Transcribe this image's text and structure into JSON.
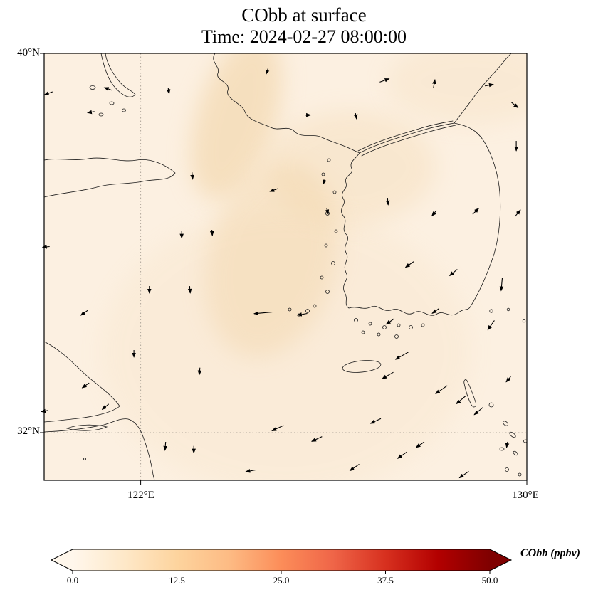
{
  "chart_data": {
    "type": "heatmap",
    "subtype": "geographic concentration field with quiver wind vectors over the Yellow Sea / Korean peninsula region",
    "title": "CObb at surface",
    "subtitle": "Time: 2024-02-27 08:00:00",
    "variable": "CObb",
    "level": "surface",
    "time": "2024-02-27 08:00:00",
    "extent": {
      "lon_min": 120,
      "lon_max": 130,
      "lat_min": 31,
      "lat_max": 40
    },
    "xticks": [
      {
        "value": 122,
        "label": "122°E"
      },
      {
        "value": 130,
        "label": "130°E"
      }
    ],
    "yticks": [
      {
        "value": 40,
        "label": "40°N"
      },
      {
        "value": 32,
        "label": "32°N"
      }
    ],
    "gridlines": {
      "lon": [
        122
      ],
      "lat": [
        32
      ],
      "style": "dotted"
    },
    "field": {
      "units": "ppbv",
      "range": [
        0,
        50
      ],
      "background_value_ppbv": 3,
      "plume_value_ppbv": 10,
      "description": "Pale cream background of roughly 2-5 ppbv everywhere; a faint light-orange plume of roughly 7-12 ppbv extends from near 124°E/40°N southward over the Yellow Sea toward 124-125°E/34-37°N."
    },
    "colorbar": {
      "label": "CObb (ppbv)",
      "tick_values": [
        0,
        12.5,
        25,
        37.5,
        50
      ],
      "tick_labels": [
        "0.0",
        "12.5",
        "25.0",
        "37.5",
        "50.0"
      ],
      "cmap": "OrRd",
      "extend": "both",
      "stops": [
        {
          "pos": 0,
          "color": "#fff7ec"
        },
        {
          "pos": 0.125,
          "color": "#fee8c8"
        },
        {
          "pos": 0.25,
          "color": "#fdd49e"
        },
        {
          "pos": 0.375,
          "color": "#fdbb84"
        },
        {
          "pos": 0.5,
          "color": "#fc8d59"
        },
        {
          "pos": 0.625,
          "color": "#ef6548"
        },
        {
          "pos": 0.75,
          "color": "#d7301f"
        },
        {
          "pos": 0.875,
          "color": "#b30000"
        },
        {
          "pos": 1,
          "color": "#7f0000"
        }
      ]
    },
    "quiver": {
      "units": "[lon_deg, lat_deg, u_px_east, v_px_north] - arrow screen displacement, length proportional to wind speed",
      "arrows": [
        [
          120.09,
          39.16,
          -11.3,
          -4.1
        ],
        [
          120.97,
          38.76,
          -9.8,
          -1.7
        ],
        [
          121.33,
          39.25,
          -11.3,
          4.1
        ],
        [
          122.58,
          39.21,
          1.4,
          -7.9
        ],
        [
          124.62,
          39.63,
          -3.4,
          -9.4
        ],
        [
          127.05,
          39.43,
          13.2,
          4.8
        ],
        [
          128.08,
          39.36,
          2.1,
          11.8
        ],
        [
          129.22,
          39.33,
          11.8,
          2.1
        ],
        [
          129.75,
          38.91,
          9.2,
          -7.7
        ],
        [
          125.46,
          38.7,
          8.0,
          0
        ],
        [
          126.46,
          38.68,
          1.4,
          -7.9
        ],
        [
          129.78,
          38.05,
          0,
          -14
        ],
        [
          123.07,
          37.42,
          0.9,
          -10
        ],
        [
          124.76,
          37.12,
          -11.3,
          -4.1
        ],
        [
          125.8,
          37.3,
          -2.7,
          -7.5
        ],
        [
          125.87,
          36.67,
          2.1,
          -7.7
        ],
        [
          127.12,
          36.88,
          0.9,
          -10
        ],
        [
          128.08,
          36.63,
          -6.4,
          -7.7
        ],
        [
          128.94,
          36.67,
          8.5,
          8.5
        ],
        [
          129.81,
          36.63,
          7.7,
          9.2
        ],
        [
          120.04,
          35.92,
          -10,
          -0.9
        ],
        [
          122.85,
          36.18,
          0,
          -10
        ],
        [
          123.48,
          36.22,
          0.7,
          -8
        ],
        [
          127.57,
          35.55,
          -11.5,
          -8
        ],
        [
          128.48,
          35.38,
          -10.7,
          -9
        ],
        [
          129.48,
          35.13,
          -1.6,
          -17.9
        ],
        [
          120.83,
          34.53,
          -9.8,
          -6.9
        ],
        [
          122.18,
          35.02,
          0,
          -10
        ],
        [
          123.02,
          35.02,
          0.9,
          -10
        ],
        [
          124.54,
          34.53,
          -25.9,
          -2.3
        ],
        [
          125.35,
          34.5,
          -13.8,
          -2.4
        ],
        [
          127.17,
          34.35,
          -11.5,
          -8
        ],
        [
          128.11,
          34.57,
          -9.8,
          -6.9
        ],
        [
          129.26,
          34.27,
          -9.2,
          -13.1
        ],
        [
          121.86,
          33.67,
          0,
          -10
        ],
        [
          123.22,
          33.3,
          -0.9,
          -10
        ],
        [
          127.42,
          33.63,
          -19.1,
          -11
        ],
        [
          127.12,
          33.21,
          -15.6,
          -9
        ],
        [
          120.86,
          33.0,
          -9.8,
          -6.9
        ],
        [
          121.27,
          32.55,
          -9.2,
          -7.7
        ],
        [
          120.01,
          32.46,
          -9.8,
          -1.7
        ],
        [
          128.23,
          32.91,
          -16.4,
          -11.5
        ],
        [
          128.64,
          32.7,
          -13.8,
          -11.6
        ],
        [
          129.0,
          32.46,
          -12.3,
          -10.3
        ],
        [
          129.62,
          33.13,
          -6.4,
          -7.7
        ],
        [
          122.51,
          31.72,
          -1.0,
          -12
        ],
        [
          123.1,
          31.65,
          0,
          -10
        ],
        [
          124.84,
          32.1,
          -16.3,
          -7.6
        ],
        [
          125.65,
          31.87,
          -14.5,
          -6.8
        ],
        [
          126.87,
          32.25,
          -14.5,
          -6.8
        ],
        [
          124.28,
          31.2,
          -13.8,
          -2.4
        ],
        [
          126.43,
          31.27,
          -13.1,
          -9.2
        ],
        [
          127.42,
          31.53,
          -13.1,
          -9.2
        ],
        [
          127.79,
          31.75,
          -11.5,
          -8
        ],
        [
          128.7,
          31.12,
          -13.1,
          -9.2
        ],
        [
          129.59,
          31.75,
          -1.4,
          -7.9
        ]
      ]
    },
    "colors": {
      "background": "#fcf0e1",
      "plume": "#f0cf9c",
      "coastline": "#1a1a1a",
      "grid": "#b0a79b"
    }
  }
}
